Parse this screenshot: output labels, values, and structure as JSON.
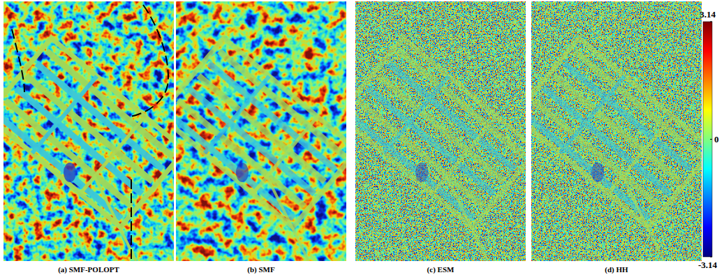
{
  "chart_data": {
    "type": "image",
    "panels": [
      {
        "label": "(a) SMF-POLOPT"
      },
      {
        "label": "(b) SMF"
      },
      {
        "label": "(c) ESM"
      },
      {
        "label": "(d) HH"
      }
    ],
    "colorbar": {
      "range": [
        -3.14,
        3.14
      ],
      "ticks": [
        -3.14,
        0,
        3.14
      ]
    }
  }
}
